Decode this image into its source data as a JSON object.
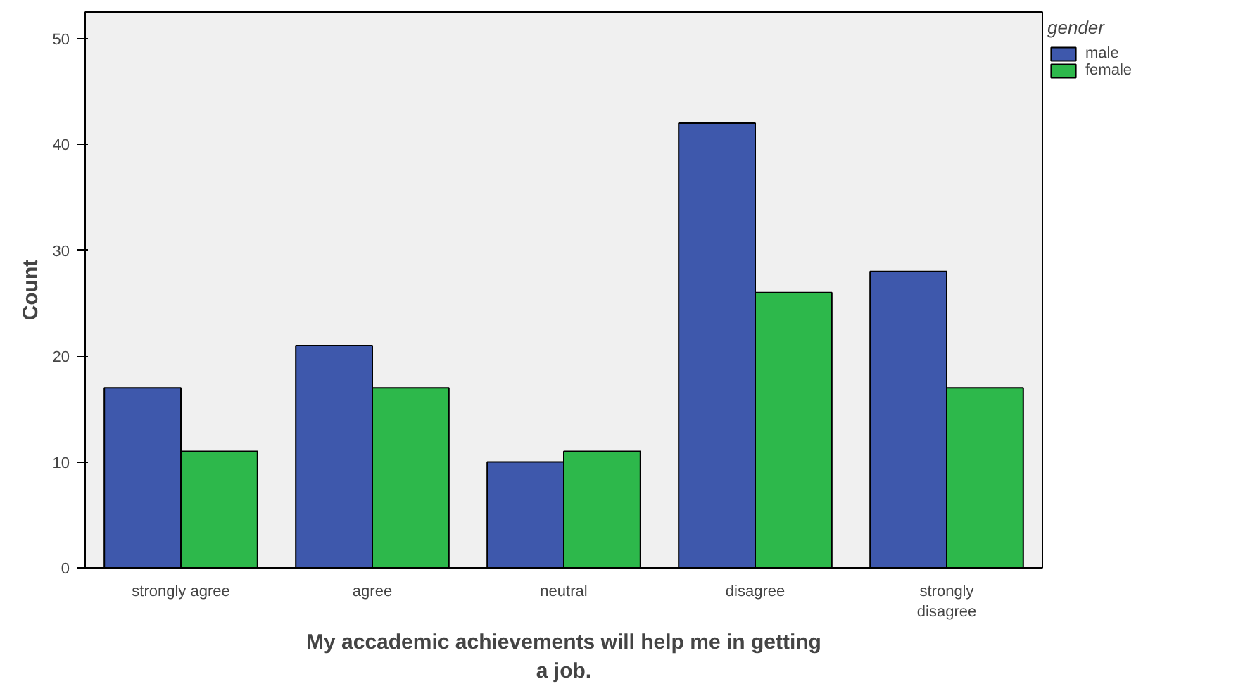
{
  "chart_data": {
    "type": "bar",
    "xlabel": "My accademic achievements will help me in getting a job.",
    "ylabel": "Count",
    "legend_title": "gender",
    "categories": [
      "strongly agree",
      "agree",
      "neutral",
      "disagree",
      "strongly disagree"
    ],
    "series": [
      {
        "name": "male",
        "color": "#3e58ac",
        "values": [
          17,
          21,
          10,
          42,
          28
        ]
      },
      {
        "name": "female",
        "color": "#2db84b",
        "values": [
          11,
          17,
          11,
          26,
          17
        ]
      }
    ],
    "ylim": [
      0,
      52.5
    ],
    "yticks": [
      0,
      10,
      20,
      30,
      40,
      50
    ],
    "grid": false,
    "legend": "top right"
  }
}
